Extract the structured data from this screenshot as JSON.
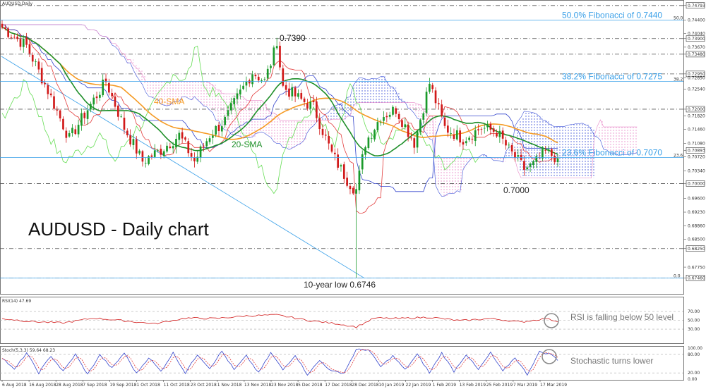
{
  "chart_data": [
    {
      "type": "candlestick",
      "title": "AUDUSD,Daily",
      "overlay_title": "AUDUSD - Daily chart",
      "ylim": [
        0.6705,
        0.749
      ],
      "price_labels": [
        "0.74793",
        "0.74400",
        "0.74040",
        "0.73900",
        "0.73670",
        "0.73480",
        "0.72950",
        "0.72850",
        "0.72540",
        "0.72000",
        "0.71820",
        "0.71460",
        "0.71080",
        "0.70893",
        "0.70720",
        "0.70340",
        "0.70000",
        "0.69600",
        "0.69230",
        "0.68860",
        "0.68500",
        "0.68250",
        "0.67750",
        "0.67460"
      ],
      "price_values": [
        0.74793,
        0.744,
        0.7404,
        0.739,
        0.7367,
        0.7348,
        0.7295,
        0.7285,
        0.7254,
        0.72,
        0.7182,
        0.7146,
        0.7108,
        0.70893,
        0.7072,
        0.7034,
        0.7,
        0.696,
        0.6923,
        0.6886,
        0.685,
        0.6825,
        0.6775,
        0.6746
      ],
      "boxed_labels": [
        "0.74793",
        "0.73900",
        "0.73480",
        "0.72950",
        "0.72000",
        "0.70893",
        "0.70000",
        "0.68250",
        "0.67460"
      ],
      "x_labels": [
        "6 Aug 2018",
        "16 Aug 2018",
        "28 Aug 2018",
        "7 Sep 2018",
        "19 Sep 2018",
        "1 Oct 2018",
        "11 Oct 2018",
        "23 Oct 2018",
        "1 Nov 2018",
        "13 Nov 2018",
        "23 Nov 2018",
        "5 Dec 2018",
        "17 Dec 2018",
        "28 Dec 2018",
        "10 Jan 2019",
        "22 Jan 2019",
        "1 Feb 2019",
        "13 Feb 2019",
        "25 Feb 2019",
        "7 Mar 2019",
        "17 Mar 2019"
      ],
      "horizontal_levels": [
        0.7479,
        0.739,
        0.7348,
        0.7295,
        0.72,
        0.7,
        0.6825,
        0.6746
      ],
      "fibonacci": [
        {
          "label": "50.0% Fibonacci of 0.7440",
          "value": 0.744,
          "short": "50.0"
        },
        {
          "label": "38.2% Fibonacci of 0.7275",
          "value": 0.7275,
          "short": "38.2"
        },
        {
          "label": "23.6% Fibonacci of 0.7070",
          "value": 0.707,
          "short": "23.6"
        },
        {
          "label": "",
          "value": 0.6746,
          "short": "0.0"
        }
      ],
      "annotations": {
        "peak": "0.7390",
        "low": "10-year low 0.6746",
        "support": "0.7000",
        "sma40": "40-SMA",
        "sma20": "20-SMA"
      },
      "series": [
        {
          "name": "20-SMA",
          "color": "#1f8f2a"
        },
        {
          "name": "40-SMA",
          "color": "#f59a23"
        }
      ],
      "colors": {
        "bull": "#1a9a2a",
        "bear": "#d11a1a",
        "cloud_bull": "#3a4fd6",
        "cloud_bear": "#e888c8",
        "tenkan": "#e23b3b",
        "kijun": "#3344cc",
        "chikou": "#66dd55",
        "fib": "#3aa0e8"
      },
      "ohlc_keypoints": [
        [
          0,
          0.742
        ],
        [
          8,
          0.737
        ],
        [
          15,
          0.725
        ],
        [
          22,
          0.712
        ],
        [
          28,
          0.72
        ],
        [
          34,
          0.7275
        ],
        [
          40,
          0.715
        ],
        [
          46,
          0.706
        ],
        [
          52,
          0.709
        ],
        [
          58,
          0.713
        ],
        [
          63,
          0.706
        ],
        [
          68,
          0.713
        ],
        [
          73,
          0.717
        ],
        [
          77,
          0.723
        ],
        [
          82,
          0.73
        ],
        [
          86,
          0.7275
        ],
        [
          90,
          0.7375
        ],
        [
          92,
          0.726
        ],
        [
          97,
          0.723
        ],
        [
          102,
          0.7205
        ],
        [
          108,
          0.708
        ],
        [
          113,
          0.701
        ],
        [
          116,
          0.698
        ],
        [
          119,
          0.711
        ],
        [
          124,
          0.718
        ],
        [
          129,
          0.72
        ],
        [
          135,
          0.711
        ],
        [
          140,
          0.727
        ],
        [
          145,
          0.715
        ],
        [
          151,
          0.712
        ],
        [
          157,
          0.715
        ],
        [
          162,
          0.714
        ],
        [
          166,
          0.709
        ],
        [
          171,
          0.704
        ],
        [
          174,
          0.705
        ],
        [
          178,
          0.7085
        ],
        [
          182,
          0.7068
        ]
      ]
    },
    {
      "type": "line",
      "title": "RSI(14) 47.69",
      "ylim": [
        0,
        100
      ],
      "y_ticks": [
        "70.00",
        "50.00",
        "30.00"
      ],
      "note": "RSI is falling below 50 level",
      "series": [
        {
          "name": "RSI(14)",
          "color": "#d11a1a"
        }
      ],
      "keypoints": [
        [
          0,
          54
        ],
        [
          10,
          47
        ],
        [
          20,
          44
        ],
        [
          30,
          55
        ],
        [
          40,
          49
        ],
        [
          50,
          42
        ],
        [
          60,
          55
        ],
        [
          70,
          54
        ],
        [
          80,
          60
        ],
        [
          90,
          62
        ],
        [
          100,
          50
        ],
        [
          110,
          42
        ],
        [
          116,
          35
        ],
        [
          122,
          55
        ],
        [
          130,
          54
        ],
        [
          140,
          57
        ],
        [
          150,
          49
        ],
        [
          160,
          54
        ],
        [
          170,
          46
        ],
        [
          178,
          54
        ],
        [
          182,
          47.69
        ]
      ]
    },
    {
      "type": "line",
      "title": "Stoch(5,3,3) 59.64 68.23",
      "ylim": [
        0,
        100
      ],
      "y_ticks": [
        "100.00",
        "80.00",
        "20.00",
        "0.00"
      ],
      "note": "Stochastic turns lower",
      "series": [
        {
          "name": "%K",
          "color": "#3344cc",
          "last": 59.64
        },
        {
          "name": "%D",
          "color": "#e23b3b",
          "last": 68.23
        }
      ],
      "keypoints": [
        [
          0,
          70
        ],
        [
          4,
          30
        ],
        [
          8,
          85
        ],
        [
          12,
          20
        ],
        [
          16,
          75
        ],
        [
          20,
          25
        ],
        [
          24,
          80
        ],
        [
          28,
          15
        ],
        [
          32,
          78
        ],
        [
          36,
          35
        ],
        [
          40,
          85
        ],
        [
          44,
          18
        ],
        [
          48,
          70
        ],
        [
          52,
          25
        ],
        [
          56,
          85
        ],
        [
          60,
          20
        ],
        [
          64,
          80
        ],
        [
          68,
          35
        ],
        [
          72,
          90
        ],
        [
          76,
          30
        ],
        [
          80,
          75
        ],
        [
          84,
          20
        ],
        [
          88,
          85
        ],
        [
          92,
          30
        ],
        [
          96,
          78
        ],
        [
          100,
          15
        ],
        [
          104,
          60
        ],
        [
          108,
          25
        ],
        [
          112,
          20
        ],
        [
          116,
          95
        ],
        [
          120,
          95
        ],
        [
          124,
          40
        ],
        [
          128,
          75
        ],
        [
          132,
          30
        ],
        [
          136,
          80
        ],
        [
          140,
          20
        ],
        [
          144,
          85
        ],
        [
          148,
          25
        ],
        [
          152,
          80
        ],
        [
          156,
          30
        ],
        [
          160,
          85
        ],
        [
          164,
          25
        ],
        [
          168,
          70
        ],
        [
          172,
          15
        ],
        [
          176,
          88
        ],
        [
          180,
          80
        ],
        [
          182,
          59.64
        ]
      ]
    }
  ]
}
